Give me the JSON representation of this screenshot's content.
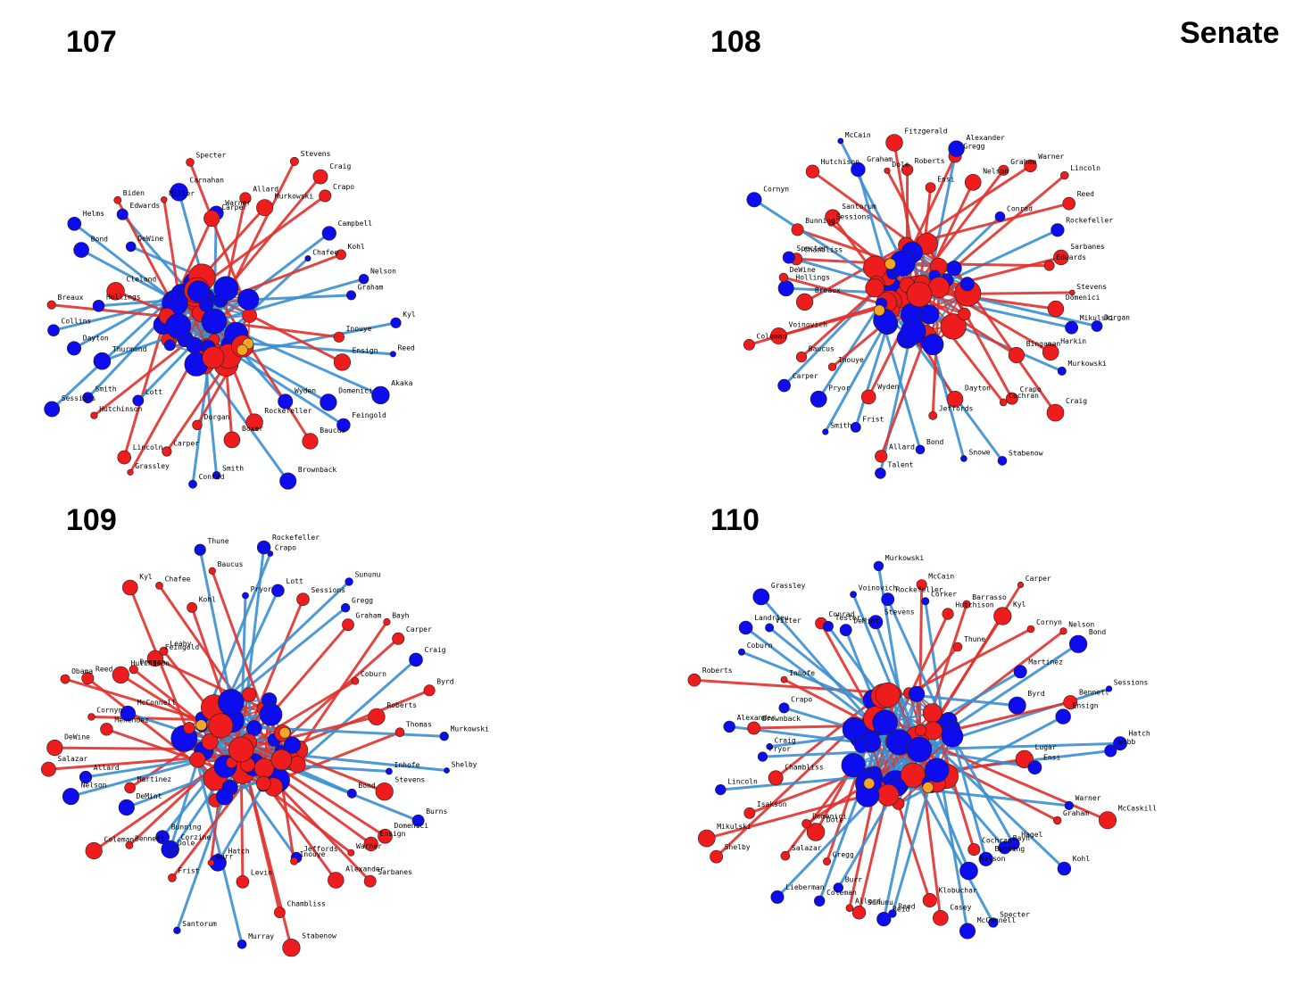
{
  "title": "Senate",
  "colors": {
    "republican_node": "#ee1c1c",
    "democrat_node": "#0c0cee",
    "independent_node": "#f5a623",
    "republican_edge": "#e0322e",
    "democrat_edge": "#3b8fd0",
    "independent_edge": "#f5b942"
  },
  "panels": [
    {
      "label": "107",
      "dominant_edge": "democrat_edge",
      "names": [
        "Warner",
        "Allard",
        "Murkowski",
        "Stevens",
        "Craig",
        "Crapo",
        "Campbell",
        "Chafee",
        "Kohl",
        "Nelson",
        "Graham",
        "Kyl",
        "Inouye",
        "Reed",
        "Ensign",
        "Akaka",
        "Domenici",
        "Feingold",
        "Wyden",
        "Baucus",
        "Brownback",
        "Rockefeller",
        "Boxer",
        "Smith",
        "Conrad",
        "Dorgan",
        "Carper",
        "Grassley",
        "Lincoln",
        "Lott",
        "Hutchinson",
        "Smith",
        "Sessions",
        "Thurmond",
        "Dayton",
        "Collins",
        "Breaux",
        "Hollings",
        "Cleland",
        "Bond",
        "Helms",
        "DeWine",
        "Edwards",
        "Biden",
        "Miller",
        "Carnahan",
        "Specter",
        "Carper"
      ]
    },
    {
      "label": "108",
      "dominant_edge": "republican_edge",
      "names": [
        "Ensi",
        "Gregg",
        "Alexander",
        "Nelson",
        "Graham",
        "Warner",
        "Conrad",
        "Lincoln",
        "Reed",
        "Rockefeller",
        "Sarbanes",
        "Edwards",
        "Stevens",
        "Domenici",
        "Dorgan",
        "Mikulski",
        "Harkin",
        "Murkowski",
        "Bingaman",
        "Craig",
        "Crapo",
        "Cochran",
        "Stabenow",
        "Dayton",
        "Snowe",
        "Jeffords",
        "Bond",
        "Talent",
        "Allard",
        "Frist",
        "Wyden",
        "Smith",
        "Pryor",
        "Inouye",
        "Carper",
        "Baucus",
        "Coleman",
        "Voinovich",
        "Breaux",
        "Hollings",
        "DeWine",
        "Chambliss",
        "Specter",
        "Bunning",
        "Cornyn",
        "Sessions",
        "Santorum",
        "Hutchison",
        "McCain",
        "Graham",
        "Dole",
        "Fitzgerald",
        "Roberts"
      ]
    },
    {
      "label": "109",
      "dominant_edge": "republican_edge",
      "names": [
        "Rockefeller",
        "Crapo",
        "Lott",
        "Sessions",
        "Sununu",
        "Gregg",
        "Graham",
        "Bayh",
        "Carper",
        "Coburn",
        "Craig",
        "Byrd",
        "Roberts",
        "Thomas",
        "Murkowski",
        "Shelby",
        "Inhofe",
        "Stevens",
        "Burns",
        "Bond",
        "Domenici",
        "Ensign",
        "Warner",
        "Sarbanes",
        "Alexander",
        "Jeffords",
        "Inouye",
        "Stabenow",
        "Chambliss",
        "Murray",
        "Levin",
        "Hatch",
        "Burr",
        "Santorum",
        "Frist",
        "Corzine",
        "Dole",
        "Bunning",
        "Bennett",
        "Coleman",
        "DeMint",
        "Martinez",
        "Nelson",
        "Allard",
        "Salazar",
        "DeWine",
        "Menendez",
        "Cornyn",
        "McConnell",
        "Obama",
        "Reed",
        "Hutchison",
        "Dorgan",
        "Feingold",
        "Leahy",
        "Kyl",
        "Chafee",
        "Kohl",
        "Thune",
        "Baucus",
        "Pryor"
      ]
    },
    {
      "label": "110",
      "dominant_edge": "democrat_edge",
      "names": [
        "McCain",
        "Corker",
        "Hutchison",
        "Barrasso",
        "Thune",
        "Kyl",
        "Carper",
        "Cornyn",
        "Nelson",
        "Bond",
        "Martinez",
        "Byrd",
        "Sessions",
        "Bennett",
        "Ensign",
        "Hatch",
        "Webb",
        "Lugar",
        "Ensi",
        "McCaskill",
        "Warner",
        "Graham",
        "Kohl",
        "Hagel",
        "Bayh",
        "Bunning",
        "Cochran",
        "Nelson",
        "Specter",
        "McConnell",
        "Casey",
        "Klobuchar",
        "Reed",
        "Reid",
        "Sununu",
        "Allard",
        "Burr",
        "Coleman",
        "Gregg",
        "Lieberman",
        "Dole",
        "Salazar",
        "Domenici",
        "Shelby",
        "Mikulski",
        "Isakson",
        "Chambliss",
        "Lincoln",
        "Pryor",
        "Craig",
        "Brownback",
        "Alexander",
        "Crapo",
        "Roberts",
        "Inhofe",
        "Coburn",
        "Landrieu",
        "Vitter",
        "Grassley",
        "Conrad",
        "Tester",
        "DeMint",
        "Voinovich",
        "Stevens",
        "Murkowski",
        "Rockefeller"
      ]
    }
  ]
}
